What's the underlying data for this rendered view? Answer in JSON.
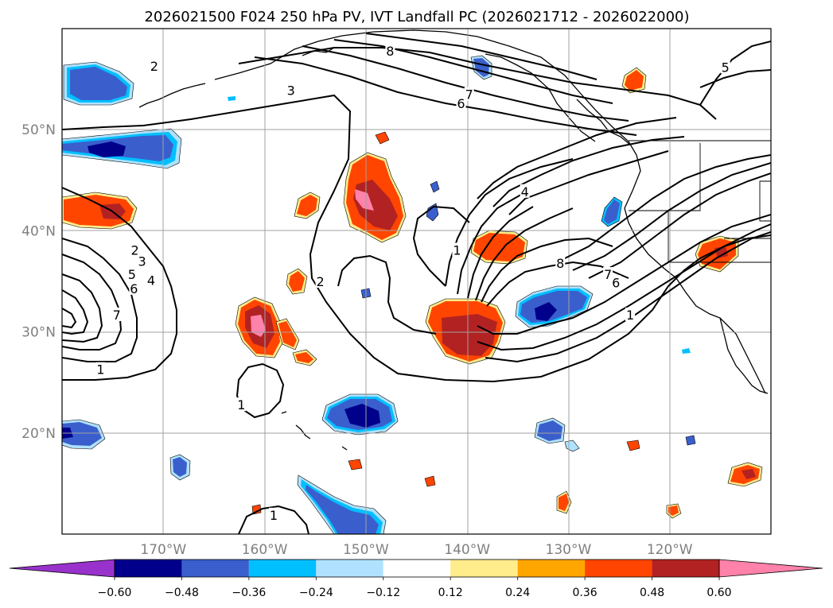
{
  "title": "2026021500 F024 250 hPa PV, IVT Landfall PC (2026021712 - 2026022000)",
  "chart_data": {
    "type": "contour-map",
    "field_shaded": "IVT Landfall PC (correlation)",
    "field_contours": "250 hPa PV (PVU)",
    "lon_range": [
      -180,
      -110
    ],
    "lat_range": [
      10,
      60
    ],
    "xticks": [
      -170,
      -160,
      -150,
      -140,
      -130,
      -120
    ],
    "xtick_labels": [
      "170°W",
      "160°W",
      "150°W",
      "140°W",
      "130°W",
      "120°W"
    ],
    "yticks": [
      20,
      30,
      40,
      50
    ],
    "ytick_labels": [
      "20°N",
      "30°N",
      "40°N",
      "50°N"
    ],
    "colorbar": {
      "levels": [
        -0.6,
        -0.48,
        -0.36,
        -0.24,
        -0.12,
        0.12,
        0.24,
        0.36,
        0.48,
        0.6
      ],
      "tick_labels": [
        "−0.60",
        "−0.48",
        "−0.36",
        "−0.24",
        "−0.12",
        "0.12",
        "0.24",
        "0.36",
        "0.48",
        "0.60"
      ],
      "colors": [
        "#9932cc",
        "#00008b",
        "#3a5fcd",
        "#00bfff",
        "#b0e2ff",
        "#ffffff",
        "#ffec8b",
        "#ffa500",
        "#ff4500",
        "#b22222",
        "#ff82ab"
      ],
      "extend": "both"
    },
    "contour_labels": [
      {
        "text": "2",
        "lon": -170.9,
        "lat": 56.3
      },
      {
        "text": "3",
        "lon": -157.4,
        "lat": 53.9
      },
      {
        "text": "8",
        "lon": -147.6,
        "lat": 57.8
      },
      {
        "text": "7",
        "lon": -139.8,
        "lat": 53.5
      },
      {
        "text": "6",
        "lon": -140.6,
        "lat": 52.6
      },
      {
        "text": "5",
        "lon": -114.5,
        "lat": 56.2
      },
      {
        "text": "4",
        "lon": -134.3,
        "lat": 43.9
      },
      {
        "text": "1",
        "lon": -141.0,
        "lat": 38.1
      },
      {
        "text": "8",
        "lon": -130.8,
        "lat": 36.8
      },
      {
        "text": "7",
        "lon": -126.1,
        "lat": 35.7
      },
      {
        "text": "6",
        "lon": -125.3,
        "lat": 34.9
      },
      {
        "text": "2",
        "lon": -154.5,
        "lat": 35.0
      },
      {
        "text": "2",
        "lon": -172.8,
        "lat": 38.1
      },
      {
        "text": "3",
        "lon": -172.1,
        "lat": 37.0
      },
      {
        "text": "4",
        "lon": -171.2,
        "lat": 35.1
      },
      {
        "text": "5",
        "lon": -173.1,
        "lat": 35.7
      },
      {
        "text": "6",
        "lon": -172.9,
        "lat": 34.3
      },
      {
        "text": "7",
        "lon": -174.6,
        "lat": 31.7
      },
      {
        "text": "1",
        "lon": -176.2,
        "lat": 26.3
      },
      {
        "text": "1",
        "lon": -162.3,
        "lat": 22.8
      },
      {
        "text": "1",
        "lon": -159.1,
        "lat": 11.9
      },
      {
        "text": "1",
        "lon": -123.9,
        "lat": 31.7
      }
    ],
    "positive_features": [
      {
        "lon": -151,
        "lat": 42,
        "peak": 0.6
      },
      {
        "lon": -142,
        "lat": 30,
        "peak": 0.48
      },
      {
        "lon": -140,
        "lat": 38,
        "peak": 0.48
      },
      {
        "lon": -160,
        "lat": 30,
        "peak": 0.6
      },
      {
        "lon": -176,
        "lat": 43,
        "peak": 0.48
      },
      {
        "lon": -114,
        "lat": 38,
        "peak": 0.48
      },
      {
        "lon": -123,
        "lat": 55,
        "peak": 0.48
      },
      {
        "lon": -112,
        "lat": 16,
        "peak": 0.48
      },
      {
        "lon": -130,
        "lat": 13,
        "peak": 0.48
      }
    ],
    "negative_features": [
      {
        "lon": -176,
        "lat": 55,
        "peak": -0.36
      },
      {
        "lon": -175,
        "lat": 48,
        "peak": -0.48
      },
      {
        "lon": -150,
        "lat": 22,
        "peak": -0.48
      },
      {
        "lon": -132,
        "lat": 33,
        "peak": -0.48
      },
      {
        "lon": -150,
        "lat": 13,
        "peak": -0.36
      },
      {
        "lon": -179,
        "lat": 20,
        "peak": -0.48
      },
      {
        "lon": -127,
        "lat": 41,
        "peak": -0.36
      },
      {
        "lon": -131,
        "lat": 20,
        "peak": -0.36
      },
      {
        "lon": -138,
        "lat": 57,
        "peak": -0.36
      },
      {
        "lon": -168,
        "lat": 16.5,
        "peak": -0.36
      }
    ]
  }
}
